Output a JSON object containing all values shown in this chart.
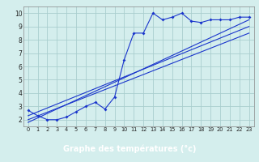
{
  "xlabel": "Graphe des températures (°c)",
  "background_color": "#d4eeed",
  "grid_color": "#aacece",
  "line_color": "#1a35cc",
  "xlim": [
    -0.5,
    23.5
  ],
  "ylim": [
    1.5,
    10.5
  ],
  "xticks": [
    0,
    1,
    2,
    3,
    4,
    5,
    6,
    7,
    8,
    9,
    10,
    11,
    12,
    13,
    14,
    15,
    16,
    17,
    18,
    19,
    20,
    21,
    22,
    23
  ],
  "yticks": [
    2,
    3,
    4,
    5,
    6,
    7,
    8,
    9,
    10
  ],
  "data_y": [
    2.7,
    2.3,
    2.0,
    2.0,
    2.2,
    2.6,
    3.0,
    3.3,
    2.8,
    3.7,
    6.5,
    8.5,
    8.5,
    10.0,
    9.5,
    9.7,
    10.0,
    9.4,
    9.3,
    9.5,
    9.5,
    9.5,
    9.7,
    9.7
  ],
  "reg_lines": [
    [
      2.0,
      8.5
    ],
    [
      2.3,
      9.0
    ],
    [
      1.8,
      9.5
    ]
  ],
  "xlabel_bg": "#2244aa",
  "xlabel_fg": "#ffffff"
}
